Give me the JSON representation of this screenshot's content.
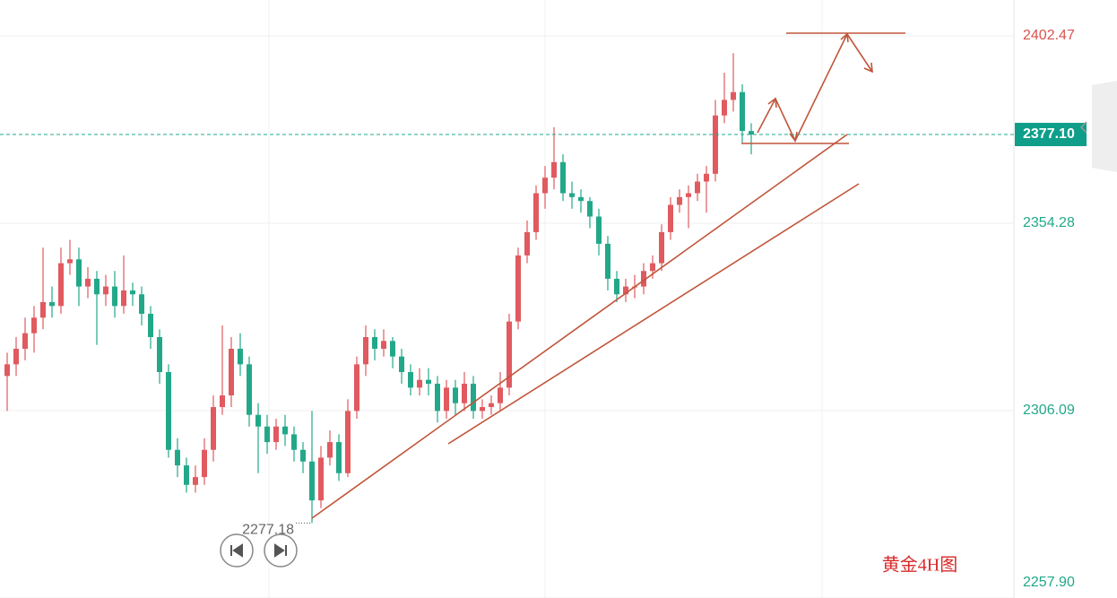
{
  "chart_data": {
    "type": "candlestick",
    "annotation": "黄金4H图",
    "open": [
      2315,
      2318,
      2322,
      2326,
      2330,
      2334,
      2333,
      2344,
      2345,
      2338,
      2340,
      2336,
      2338,
      2333,
      2337,
      2336,
      2331,
      2325,
      2316,
      2296,
      2292,
      2287,
      2289,
      2296,
      2307,
      2310,
      2322,
      2318,
      2305,
      2302,
      2298,
      2302,
      2300,
      2296,
      2293,
      2283,
      2294,
      2298,
      2290,
      2306,
      2318,
      2325,
      2322,
      2324,
      2320,
      2316,
      2312,
      2314,
      2313,
      2306,
      2312,
      2308,
      2313,
      2306,
      2307,
      2308,
      2312,
      2329,
      2346,
      2352,
      2362,
      2366,
      2370,
      2362,
      2361,
      2360,
      2356,
      2349,
      2340,
      2336,
      2338,
      2338,
      2342,
      2344,
      2352,
      2359,
      2361,
      2362,
      2365,
      2367,
      2382,
      2386,
      2388,
      2378
    ],
    "high": [
      2321,
      2325,
      2330,
      2333,
      2348,
      2338,
      2348,
      2350,
      2348,
      2343,
      2342,
      2341,
      2342,
      2346,
      2339,
      2338,
      2333,
      2327,
      2318,
      2299,
      2294,
      2292,
      2299,
      2310,
      2328,
      2325,
      2326,
      2320,
      2308,
      2305,
      2304,
      2305,
      2302,
      2298,
      2306,
      2297,
      2301,
      2300,
      2309,
      2320,
      2328,
      2327,
      2327,
      2325,
      2322,
      2318,
      2317,
      2317,
      2315,
      2314,
      2314,
      2316,
      2315,
      2309,
      2310,
      2316,
      2331,
      2348,
      2355,
      2364,
      2369,
      2379,
      2372,
      2365,
      2363,
      2361,
      2358,
      2351,
      2342,
      2340,
      2341,
      2344,
      2346,
      2354,
      2361,
      2363,
      2364,
      2367,
      2369,
      2386,
      2393,
      2398,
      2390,
      2380
    ],
    "low": [
      2306,
      2315,
      2319,
      2321,
      2327,
      2330,
      2331,
      2341,
      2333,
      2335,
      2323,
      2333,
      2330,
      2331,
      2333,
      2328,
      2322,
      2313,
      2294,
      2289,
      2285,
      2285,
      2287,
      2293,
      2305,
      2307,
      2315,
      2302,
      2290,
      2295,
      2296,
      2297,
      2293,
      2290,
      2277.18,
      2281,
      2292,
      2288,
      2289,
      2304,
      2315,
      2319,
      2320,
      2317,
      2313,
      2310,
      2310,
      2310,
      2303,
      2304,
      2305,
      2306,
      2304,
      2304,
      2305,
      2306,
      2310,
      2327,
      2344,
      2350,
      2358,
      2363,
      2360,
      2358,
      2357,
      2353,
      2346,
      2337,
      2334,
      2334,
      2335,
      2336,
      2340,
      2342,
      2350,
      2357,
      2353,
      2360,
      2357,
      2365,
      2380,
      2383,
      2375,
      2372
    ],
    "close": [
      2318,
      2322,
      2326,
      2330,
      2334,
      2333,
      2344,
      2345,
      2338,
      2340,
      2336,
      2338,
      2333,
      2337,
      2336,
      2331,
      2325,
      2316,
      2296,
      2292,
      2287,
      2289,
      2296,
      2307,
      2310,
      2322,
      2318,
      2305,
      2302,
      2298,
      2302,
      2300,
      2296,
      2293,
      2283,
      2294,
      2298,
      2290,
      2306,
      2318,
      2325,
      2322,
      2324,
      2320,
      2316,
      2312,
      2314,
      2313,
      2306,
      2312,
      2308,
      2313,
      2306,
      2307,
      2308,
      2312,
      2329,
      2346,
      2352,
      2362,
      2366,
      2370,
      2362,
      2361,
      2360,
      2356,
      2349,
      2340,
      2336,
      2338,
      2338,
      2342,
      2344,
      2352,
      2359,
      2361,
      2362,
      2365,
      2367,
      2382,
      2386,
      2388,
      2378,
      2377.1
    ],
    "up_color": "#e05a5f",
    "down_color": "#22a889",
    "last_price": {
      "value": 2377.1,
      "label": "2377.10"
    },
    "ylim": [
      2257.9,
      2411.69
    ],
    "yticks": [
      2402.47,
      2354.28,
      2306.09,
      {
        "value": 2257.9,
        "label": "2257.90"
      }
    ],
    "grid": true
  }
}
